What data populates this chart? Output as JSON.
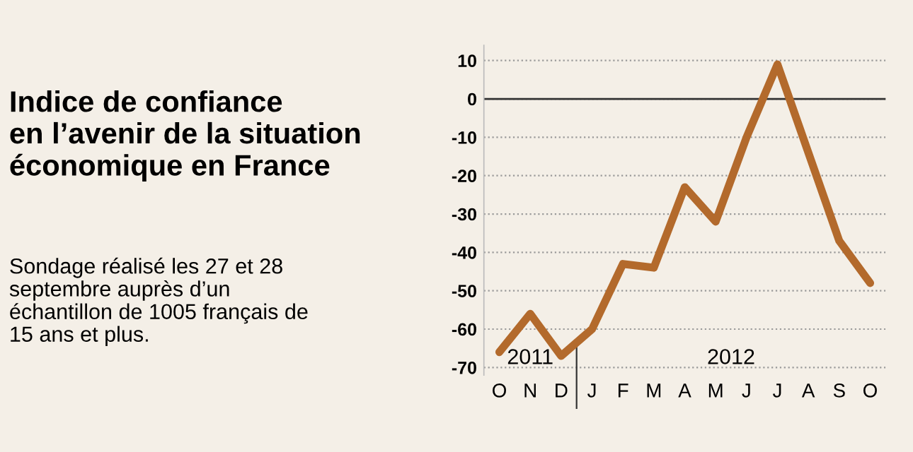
{
  "chart_data": {
    "type": "line",
    "title": "Indice de confiance\nen l’avenir de la situation\néconomique en France",
    "categories": [
      "O",
      "N",
      "D",
      "J",
      "F",
      "M",
      "A",
      "M",
      "J",
      "J",
      "A",
      "S",
      "O"
    ],
    "series": [
      {
        "color": "#b36a2c",
        "values": [
          -66,
          -56,
          -67,
          -60,
          -43,
          -44,
          -23,
          -32,
          -10,
          9,
          -14,
          -37,
          -48
        ]
      }
    ],
    "ylim": [
      -72,
      14
    ],
    "yticks": [
      10,
      0,
      -10,
      -20,
      -30,
      -40,
      -50,
      -60,
      -70
    ],
    "grid": "y",
    "ref_lines": [
      {
        "axis": "y",
        "value": 0,
        "color": "#333333",
        "line_style": "solid"
      }
    ],
    "annotations": [
      "Sondage réalisé les 27 et 28\nseptembre auprès d’un\néchantillon de 1005 français de\n15 ans et plus.",
      "2011",
      "2012"
    ],
    "marker": "none",
    "line_style": "solid"
  }
}
